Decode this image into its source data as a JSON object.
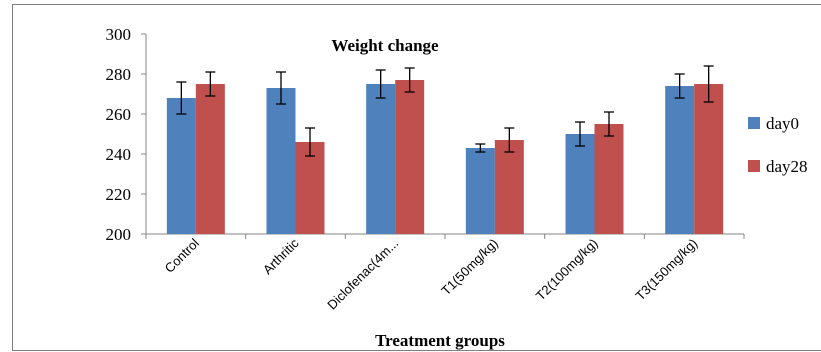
{
  "chart_data": {
    "type": "bar",
    "title": "Weight change",
    "xlabel": "Treatment groups",
    "ylabel": "",
    "categories": [
      "Control",
      "Arthritic",
      "Diclofenac(4m...",
      "T1(50mg/kg)",
      "T2(100mg/kg)",
      "T3(150mg/kg)"
    ],
    "series": [
      {
        "name": "day0",
        "color": "#4f81bd",
        "values": [
          268,
          273,
          275,
          243,
          250,
          274
        ],
        "errors": [
          8,
          8,
          7,
          2,
          6,
          6
        ]
      },
      {
        "name": "day28",
        "color": "#c0504d",
        "values": [
          275,
          246,
          277,
          247,
          255,
          275
        ],
        "errors": [
          6,
          7,
          6,
          6,
          6,
          9
        ]
      }
    ],
    "ylim": [
      200,
      300
    ],
    "yticks": [
      "200",
      "220",
      "240",
      "260",
      "280",
      "300"
    ],
    "grid": false,
    "legend_position": "right"
  }
}
